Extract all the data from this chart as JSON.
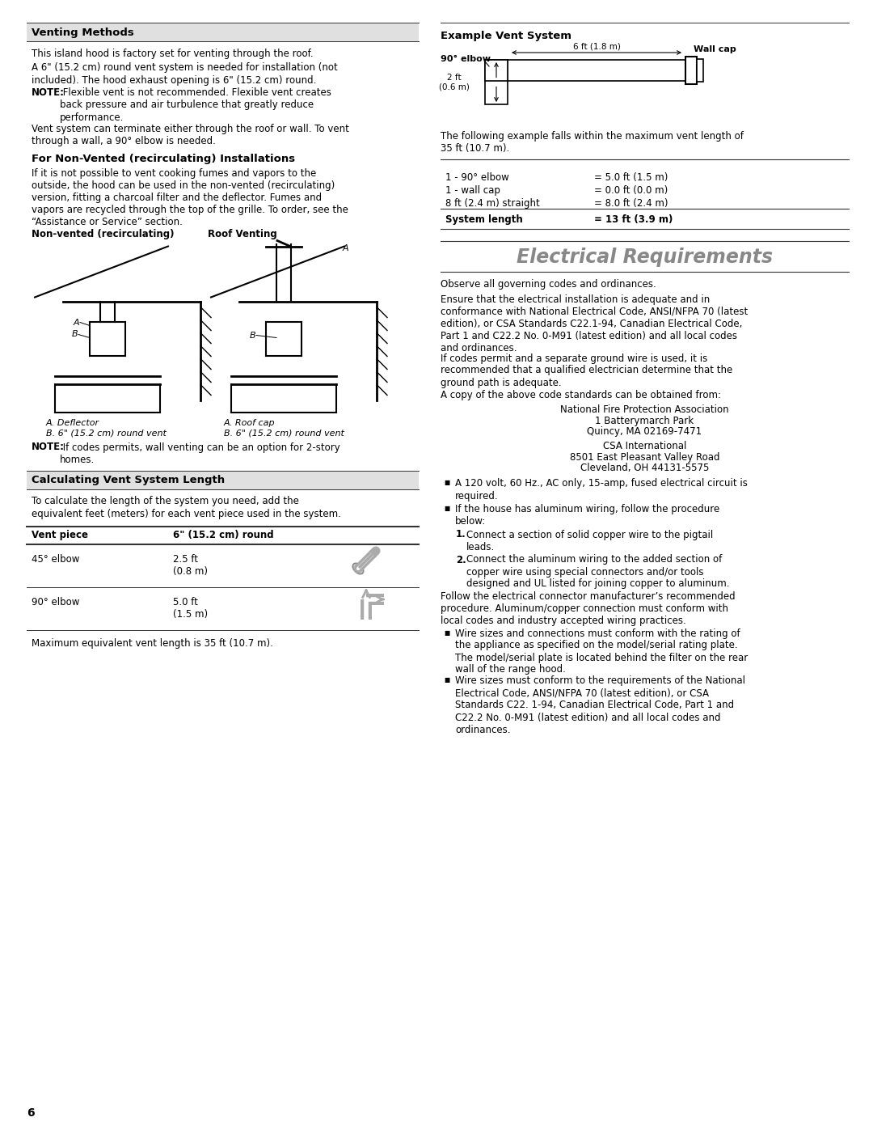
{
  "bg_color": "#ffffff",
  "page_number": "6",
  "left_col": {
    "section1_title": "Venting Methods",
    "s1_body0": "This island hood is factory set for venting through the roof.",
    "s1_body1": "A 6\" (15.2 cm) round vent system is needed for installation (not\nincluded). The hood exhaust opening is 6\" (15.2 cm) round.",
    "s1_note_bold": "NOTE:",
    "s1_note_rest": " Flexible vent is not recommended. Flexible vent creates\nback pressure and air turbulence that greatly reduce\nperformance.",
    "s1_body3": "Vent system can terminate either through the roof or wall. To vent\nthrough a wall, a 90° elbow is needed.",
    "section2_title": "For Non-Vented (recirculating) Installations",
    "s2_body": "If it is not possible to vent cooking fumes and vapors to the\noutside, the hood can be used in the non-vented (recirculating)\nversion, fitting a charcoal filter and the deflector. Fumes and\nvapors are recycled through the top of the grille. To order, see the\n“Assistance or Service” section.",
    "diag_label_left": "Non-vented (recirculating)",
    "diag_label_right": "Roof Venting",
    "cap_left_A": "A. Deflector",
    "cap_left_B": "B. 6\" (15.2 cm) round vent",
    "cap_right_A": "A. Roof cap",
    "cap_right_B": "B. 6\" (15.2 cm) round vent",
    "note_bottom_bold": "NOTE:",
    "note_bottom_rest": " If codes permits, wall venting can be an option for 2-story\nhomes.",
    "section3_title": "Calculating Vent System Length",
    "s3_body": "To calculate the length of the system you need, add the\nequivalent feet (meters) for each vent piece used in the system.",
    "th1": "Vent piece",
    "th2": "6\" (15.2 cm) round",
    "tr1_c1": "45° elbow",
    "tr1_c2": "2.5 ft\n(0.8 m)",
    "tr2_c1": "90° elbow",
    "tr2_c2": "5.0 ft\n(1.5 m)",
    "table_footer": "Maximum equivalent vent length is 35 ft (10.7 m)."
  },
  "right_col": {
    "ex_title": "Example Vent System",
    "ex_label_elbow": "90° elbow",
    "ex_label_dim": "6 ft (1.8 m)",
    "ex_label_wallcap": "Wall cap",
    "ex_label_2ft": "2 ft\n(0.6 m)",
    "vt_intro": "The following example falls within the maximum vent length of\n35 ft (10.7 m).",
    "vt_rows": [
      [
        "1 - 90° elbow",
        "= 5.0 ft (1.5 m)"
      ],
      [
        "1 - wall cap",
        "= 0.0 ft (0.0 m)"
      ],
      [
        "8 ft (2.4 m) straight",
        "= 8.0 ft (2.4 m)"
      ],
      [
        "System length",
        "= 13 ft (3.9 m)"
      ]
    ],
    "elec_title": "Electrical Requirements",
    "elec_b1": "Observe all governing codes and ordinances.",
    "elec_b2": "Ensure that the electrical installation is adequate and in\nconformance with National Electrical Code, ANSI/NFPA 70 (latest\nedition), or CSA Standards C22.1-94, Canadian Electrical Code,\nPart 1 and C22.2 No. 0-M91 (latest edition) and all local codes\nand ordinances.",
    "elec_b3": "If codes permit and a separate ground wire is used, it is\nrecommended that a qualified electrician determine that the\nground path is adequate.",
    "elec_b4": "A copy of the above code standards can be obtained from:",
    "elec_c1": "National Fire Protection Association",
    "elec_c2": "1 Batterymarch Park",
    "elec_c3": "Quincy, MA 02169-7471",
    "elec_c4": "CSA International",
    "elec_c5": "8501 East Pleasant Valley Road",
    "elec_c6": "Cleveland, OH 44131-5575",
    "bl1": "A 120 volt, 60 Hz., AC only, 15-amp, fused electrical circuit is\nrequired.",
    "bl2": "If the house has aluminum wiring, follow the procedure\nbelow:",
    "n1": "Connect a section of solid copper wire to the pigtail\nleads.",
    "n2": "Connect the aluminum wiring to the added section of\ncopper wire using special connectors and/or tools\ndesigned and UL listed for joining copper to aluminum.",
    "elec_b5": "Follow the electrical connector manufacturer’s recommended\nprocedure. Aluminum/copper connection must conform with\nlocal codes and industry accepted wiring practices.",
    "bl3": "Wire sizes and connections must conform with the rating of\nthe appliance as specified on the model/serial rating plate.\nThe model/serial plate is located behind the filter on the rear\nwall of the range hood.",
    "bl4": "Wire sizes must conform to the requirements of the National\nElectrical Code, ANSI/NFPA 70 (latest edition), or CSA\nStandards C22. 1-94, Canadian Electrical Code, Part 1 and\nC22.2 No. 0-M91 (latest edition) and all local codes and\nordinances."
  }
}
